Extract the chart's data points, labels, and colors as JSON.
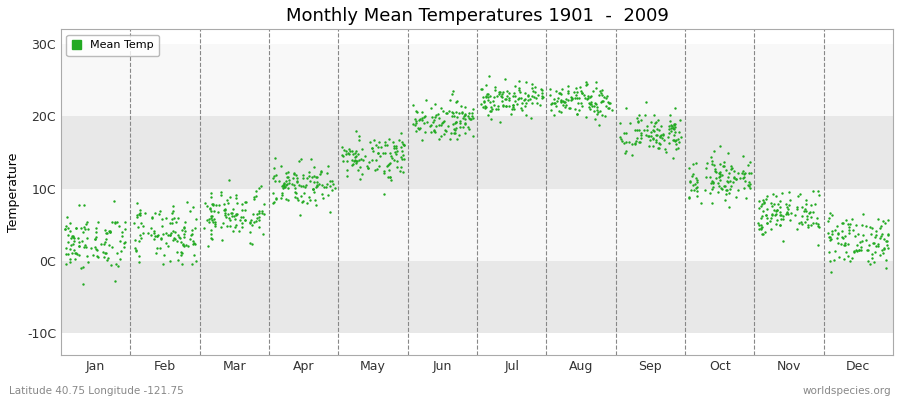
{
  "title": "Monthly Mean Temperatures 1901  -  2009",
  "ylabel": "Temperature",
  "xlabel_months": [
    "Jan",
    "Feb",
    "Mar",
    "Apr",
    "May",
    "Jun",
    "Jul",
    "Aug",
    "Sep",
    "Oct",
    "Nov",
    "Dec"
  ],
  "ytick_labels": [
    "-10C",
    "0C",
    "10C",
    "20C",
    "30C"
  ],
  "ytick_values": [
    -10,
    0,
    10,
    20,
    30
  ],
  "ylim": [
    -13,
    32
  ],
  "xlim": [
    0,
    12
  ],
  "dot_color": "#22aa22",
  "dot_size": 3,
  "plot_bg_color": "#f0f0f0",
  "band_color_light": "#e8e8e8",
  "band_color_white": "#f8f8f8",
  "fig_bg_color": "#ffffff",
  "legend_label": "Mean Temp",
  "footer_left": "Latitude 40.75 Longitude -121.75",
  "footer_right": "worldspecies.org",
  "monthly_means": [
    2.5,
    3.5,
    6.5,
    10.5,
    14.5,
    19.5,
    22.5,
    22.0,
    17.5,
    11.5,
    6.5,
    3.0
  ],
  "monthly_stds": [
    2.0,
    2.0,
    1.8,
    1.5,
    1.5,
    1.3,
    1.2,
    1.2,
    1.5,
    1.5,
    1.5,
    1.8
  ],
  "monthly_trend": [
    0.008,
    0.008,
    0.008,
    0.008,
    0.008,
    0.008,
    0.008,
    0.008,
    0.008,
    0.008,
    0.008,
    0.008
  ],
  "n_years": 109,
  "seed": 42
}
